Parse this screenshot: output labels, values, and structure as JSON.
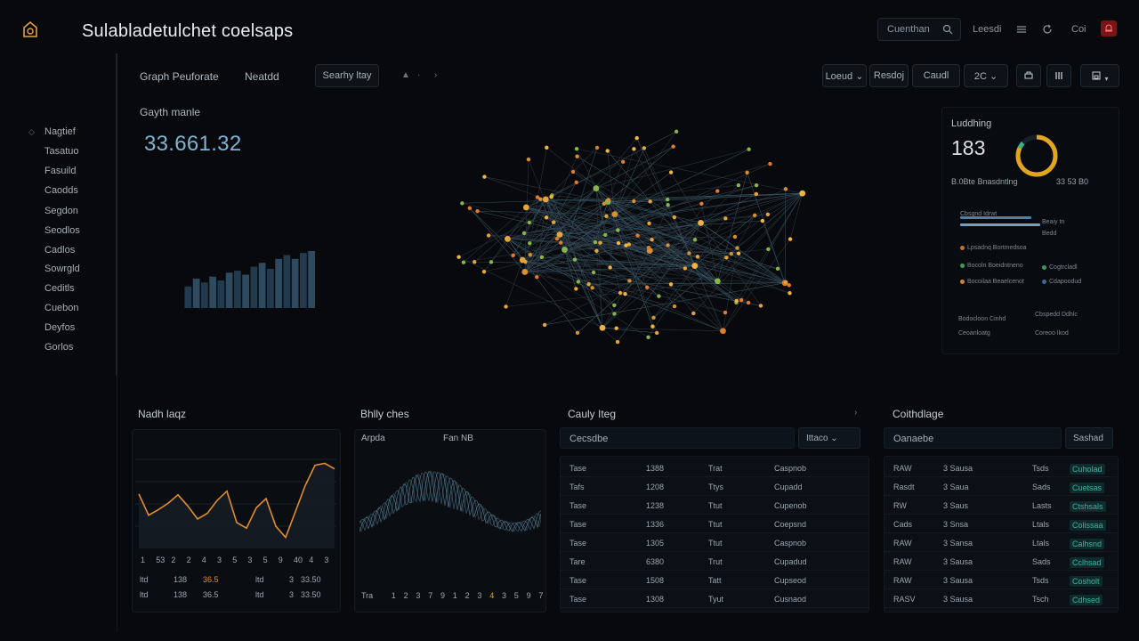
{
  "app": {
    "title": "Sulabladetulchet coelsaps"
  },
  "header": {
    "search_label": "Cuenthan",
    "links": [
      "Leesdi",
      "Coi"
    ]
  },
  "sidebar": {
    "items": [
      "Nagtief",
      "Tasatuo",
      "Fasuild",
      "Caodds",
      "Segdon",
      "Seodlos",
      "Cadlos",
      "Sowrgld",
      "Ceditls",
      "Cuebon",
      "Deyfos",
      "Gorlos"
    ]
  },
  "toolbar": {
    "tab_graph": "Graph Peuforate",
    "tab_other": "Neatdd",
    "search_button": "Searhy ltay",
    "buttons": [
      "Loeud ⌄",
      "Resdoj",
      "Caudl"
    ],
    "zoom_label": "2C"
  },
  "top_left": {
    "label": "Gayth manle",
    "value": "33.661.32",
    "bar_values": [
      22,
      30,
      26,
      32,
      28,
      36,
      38,
      34,
      42,
      46,
      40,
      50,
      54,
      50,
      56,
      58
    ]
  },
  "summary": {
    "title": "Luddhing",
    "value": "183",
    "ring_fraction": 0.82,
    "sub_left": "B.0Bte Bnasdntlng",
    "sub_right": "33 53 B0",
    "bar_caption": "Cbsgnd Idrwt",
    "legend_a": "Beaiy tn",
    "legend_b": "Bedd",
    "rows": [
      {
        "left": "Lpsadnq Bortmedsoa",
        "right": ""
      },
      {
        "left": "Bocoln Boeidntneno",
        "right": "Cogtrcladl"
      },
      {
        "left": "Bocoilaa Beaelcenot",
        "right": "Cdapoodud"
      },
      {
        "left": "Bodocloon Cinhd",
        "right": "Cbspedd Ddhlc"
      },
      {
        "left": "Ceoanloatg",
        "right": "Coreoo lkod"
      }
    ],
    "colors": {
      "ring": "#e2a521",
      "ring_tail": "#35b38a",
      "bar_a": "#4f7fa6",
      "bar_b": "#6da0c6"
    }
  },
  "card1": {
    "title": "Nadh laqz",
    "axis": [
      "1",
      "53",
      "2",
      "2",
      "4",
      "3",
      "5",
      "3",
      "5",
      "9",
      "40",
      "4",
      "3"
    ],
    "footer": [
      "ltd",
      "138",
      "36.5",
      "ltd",
      "3",
      "33.50"
    ],
    "line_points": [
      0.45,
      0.68,
      0.62,
      0.55,
      0.46,
      0.58,
      0.72,
      0.66,
      0.52,
      0.42,
      0.76,
      0.82,
      0.6,
      0.5,
      0.8,
      0.92,
      0.64,
      0.36,
      0.14,
      0.12,
      0.18
    ],
    "line_color": "#e28c2a"
  },
  "card2": {
    "title": "Bhlly ches",
    "legend": [
      "Arpda",
      "Fan NB"
    ],
    "axis": [
      "Tra",
      "1",
      "2",
      "3",
      "7",
      "9",
      "1",
      "2",
      "3",
      "4",
      "3",
      "5",
      "9",
      "7"
    ],
    "wave_color": "#5e8ba0"
  },
  "card3": {
    "title": "Cauly Iteg",
    "head_label": "Cecsdbe",
    "head_button": "Ittaco ⌄",
    "rows": [
      [
        "Tase",
        "1388",
        "Trat",
        "Caspnob"
      ],
      [
        "Tafs",
        "1208",
        "Ttys",
        "Cupadd"
      ],
      [
        "Tase",
        "1238",
        "Ttut",
        "Cupenob"
      ],
      [
        "Tase",
        "1336",
        "Ttut",
        "Coepsnd"
      ],
      [
        "Tase",
        "1305",
        "Ttut",
        "Caspnob"
      ],
      [
        "Tare",
        "6380",
        "Trut",
        "Cupadud"
      ],
      [
        "Tase",
        "1508",
        "Tatt",
        "Cupseod"
      ],
      [
        "Tase",
        "1308",
        "Tyut",
        "Cusnaod"
      ]
    ]
  },
  "card4": {
    "title": "Coithdlage",
    "head_label": "Oanaebe",
    "head_button": "Sashad",
    "rows": [
      [
        "RAW",
        "3 Sausa",
        "Tsds",
        "Cuholad"
      ],
      [
        "Rasdt",
        "3 Saua",
        "Sads",
        "Cuetsas"
      ],
      [
        "RW",
        "3 Saus",
        "Lasts",
        "Ctshsals"
      ],
      [
        "Cads",
        "3 Snsa",
        "Ltals",
        "Colissaa"
      ],
      [
        "RAW",
        "3 Sansa",
        "Ltals",
        "Calhsnd"
      ],
      [
        "RAW",
        "3 Sausa",
        "Sads",
        "Cclhsad"
      ],
      [
        "RAW",
        "3 Sausa",
        "Tsds",
        "Cosholt"
      ],
      [
        "RASV",
        "3 Sausa",
        "Tsch",
        "Cdhsed"
      ]
    ]
  }
}
